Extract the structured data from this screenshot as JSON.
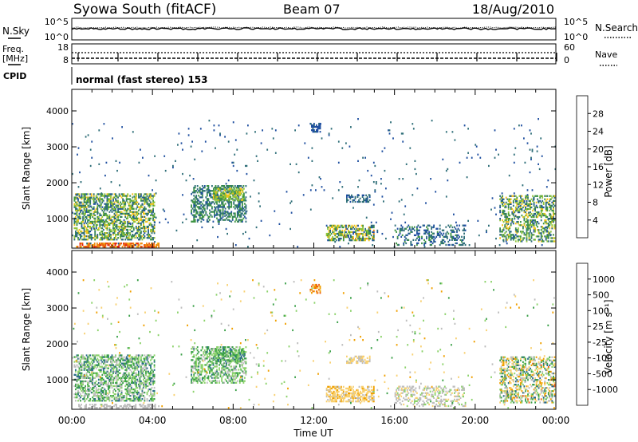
{
  "header": {
    "station": "Syowa South (fitACF)",
    "beam": "Beam 07",
    "date": "18/Aug/2010"
  },
  "top_panel": {
    "left_label": "N.Sky",
    "right_label": "N.Search",
    "left_ticks": [
      "10^5",
      "10^0"
    ],
    "right_ticks": [
      "10^5",
      "10^0"
    ]
  },
  "freq_panel": {
    "left_label": "Freq.",
    "left_unit": "[MHz]",
    "left_ticks": [
      "18",
      "8"
    ],
    "right_label": "Nave",
    "right_ticks": [
      "60",
      "0"
    ],
    "cpid_label": "CPID",
    "mode_text": "normal (fast stereo) 153"
  },
  "colors": {
    "power_scale": [
      "#1a3cff",
      "#1f4fa0",
      "#2e6e78",
      "#3e9444",
      "#8fc43a",
      "#f2c21a",
      "#f08a10",
      "#e85010",
      "#e01010"
    ],
    "velocity_scale": [
      "#e01010",
      "#f06010",
      "#f0a000",
      "#f8d070",
      "#bdbdbd",
      "#8bd26a",
      "#3aa048",
      "#2a6c88",
      "#1f3fa8"
    ]
  },
  "chart_data": [
    {
      "type": "heatmap",
      "title": "",
      "xlabel": "Time UT",
      "ylabel": "Slant Range [km]",
      "x_ticks": [
        "00:00",
        "04:00",
        "08:00",
        "12:00",
        "16:00",
        "20:00",
        "00:00"
      ],
      "xlim": [
        0,
        24
      ],
      "y_ticks": [
        "1000",
        "2000",
        "3000",
        "4000"
      ],
      "ylim": [
        180,
        4600
      ],
      "colorbar_label": "Power [dB]",
      "colorbar_ticks": [
        "28",
        "24",
        "20",
        "16",
        "12",
        "8",
        "4"
      ],
      "colorbar_range": [
        0,
        32
      ],
      "regions": [
        {
          "t": [
            0.1,
            4.1
          ],
          "r": [
            400,
            1700
          ],
          "v": [
            6,
            20
          ],
          "density": 0.55
        },
        {
          "t": [
            0.2,
            4.3
          ],
          "r": [
            200,
            320
          ],
          "v": [
            20,
            30
          ],
          "density": 0.7
        },
        {
          "t": [
            5.9,
            8.6
          ],
          "r": [
            900,
            1900
          ],
          "v": [
            6,
            14
          ],
          "density": 0.45
        },
        {
          "t": [
            7.0,
            8.5
          ],
          "r": [
            1500,
            1850
          ],
          "v": [
            12,
            20
          ],
          "density": 0.6
        },
        {
          "t": [
            11.8,
            12.3
          ],
          "r": [
            3400,
            3650
          ],
          "v": [
            4,
            8
          ],
          "density": 0.5
        },
        {
          "t": [
            12.6,
            15.0
          ],
          "r": [
            380,
            800
          ],
          "v": [
            6,
            22
          ],
          "density": 0.6
        },
        {
          "t": [
            13.6,
            14.8
          ],
          "r": [
            1450,
            1650
          ],
          "v": [
            6,
            10
          ],
          "density": 0.5
        },
        {
          "t": [
            16.0,
            19.5
          ],
          "r": [
            250,
            800
          ],
          "v": [
            4,
            12
          ],
          "density": 0.3
        },
        {
          "t": [
            21.2,
            23.9
          ],
          "r": [
            350,
            1650
          ],
          "v": [
            6,
            20
          ],
          "density": 0.45
        },
        {
          "t": [
            0.0,
            24.0
          ],
          "r": [
            200,
            3800
          ],
          "v": [
            4,
            10
          ],
          "density": 0.012
        }
      ]
    },
    {
      "type": "heatmap",
      "title": "",
      "xlabel": "Time UT",
      "ylabel": "Slant Range [km]",
      "x_ticks": [
        "00:00",
        "04:00",
        "08:00",
        "12:00",
        "16:00",
        "20:00",
        "00:00"
      ],
      "xlim": [
        0,
        24
      ],
      "y_ticks": [
        "1000",
        "2000",
        "3000",
        "4000"
      ],
      "ylim": [
        180,
        4600
      ],
      "colorbar_label": "Velocity [m s⁻¹]",
      "colorbar_ticks": [
        "1000",
        "500",
        "100",
        "25",
        "-25",
        "-100",
        "-500",
        "-1000"
      ],
      "colorbar_range": [
        -1200,
        1200
      ],
      "regions": [
        {
          "t": [
            0.1,
            4.1
          ],
          "r": [
            400,
            1700
          ],
          "v": [
            -100,
            800
          ],
          "density": 0.55
        },
        {
          "t": [
            0.2,
            4.3
          ],
          "r": [
            200,
            320
          ],
          "v": [
            -100,
            100
          ],
          "density": 0.5
        },
        {
          "t": [
            5.9,
            8.6
          ],
          "r": [
            900,
            1900
          ],
          "v": [
            0,
            700
          ],
          "density": 0.45
        },
        {
          "t": [
            7.0,
            8.5
          ],
          "r": [
            1500,
            1850
          ],
          "v": [
            100,
            900
          ],
          "density": 0.6
        },
        {
          "t": [
            11.8,
            12.3
          ],
          "r": [
            3400,
            3650
          ],
          "v": [
            -900,
            -300
          ],
          "density": 0.5
        },
        {
          "t": [
            12.6,
            15.0
          ],
          "r": [
            380,
            800
          ],
          "v": [
            -500,
            -50
          ],
          "density": 0.6
        },
        {
          "t": [
            13.6,
            14.8
          ],
          "r": [
            1450,
            1650
          ],
          "v": [
            -300,
            -30
          ],
          "density": 0.5
        },
        {
          "t": [
            16.0,
            19.5
          ],
          "r": [
            250,
            800
          ],
          "v": [
            -200,
            200
          ],
          "density": 0.3
        },
        {
          "t": [
            21.2,
            23.9
          ],
          "r": [
            350,
            1650
          ],
          "v": [
            -700,
            900
          ],
          "density": 0.45
        },
        {
          "t": [
            0.0,
            24.0
          ],
          "r": [
            200,
            3800
          ],
          "v": [
            -600,
            600
          ],
          "density": 0.012
        }
      ]
    }
  ]
}
